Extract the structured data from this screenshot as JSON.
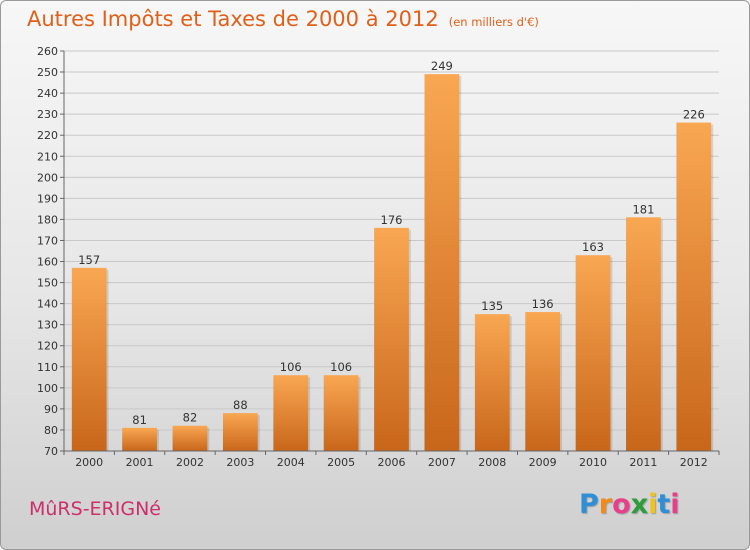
{
  "page": {
    "title": "Autres Impôts et Taxes de 2000 à 2012",
    "subtitle": "(en milliers d'€)",
    "commune": "MûRS-ERIGNé",
    "logo": {
      "text": "Proxiti",
      "letter_colors": [
        "#2e8fd6",
        "#f08a1c",
        "#e83f8a",
        "#2e9c3a",
        "#f0c21c",
        "#2e8fd6",
        "#e83f8a"
      ]
    }
  },
  "colors": {
    "bar_top": "#f9a752",
    "bar_bottom": "#c8661a",
    "grid": "#c8c8c8",
    "axis_text": "#333333",
    "title": "#e0601a"
  },
  "chart_data": {
    "type": "bar",
    "title": "Autres Impôts et Taxes de 2000 à 2012",
    "subtitle": "(en milliers d'€)",
    "xlabel": "",
    "ylabel": "",
    "categories": [
      "2000",
      "2001",
      "2002",
      "2003",
      "2004",
      "2005",
      "2006",
      "2007",
      "2008",
      "2009",
      "2010",
      "2011",
      "2012"
    ],
    "values": [
      157,
      81,
      82,
      88,
      106,
      106,
      176,
      249,
      135,
      136,
      163,
      181,
      226
    ],
    "data_labels": [
      "157",
      "81",
      "82",
      "88",
      "106",
      "106",
      "176",
      "249",
      "135",
      "136",
      "163",
      "181",
      "226"
    ],
    "ylim": [
      70,
      260
    ],
    "yticks": [
      70,
      80,
      90,
      100,
      110,
      120,
      130,
      140,
      150,
      160,
      170,
      180,
      190,
      200,
      210,
      220,
      230,
      240,
      250,
      260
    ],
    "ytick_labels": [
      "70",
      "80",
      "90",
      "100",
      "110",
      "120",
      "130",
      "140",
      "150",
      "160",
      "170",
      "180",
      "190",
      "200",
      "210",
      "220",
      "230",
      "240",
      "250",
      "260"
    ],
    "grid": true,
    "legend": "none"
  }
}
